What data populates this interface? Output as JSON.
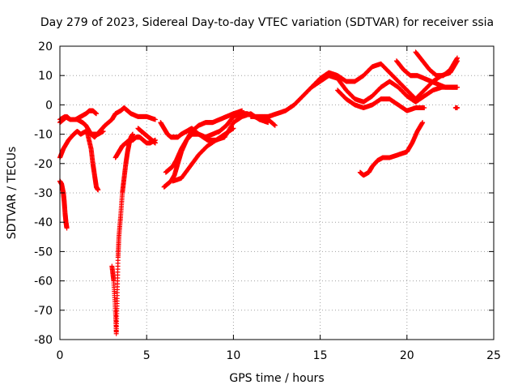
{
  "chart_data": {
    "type": "scatter",
    "title": "Day 279 of 2023, Sidereal Day-to-day VTEC variation (SDTVAR) for receiver ssia",
    "xlabel": "GPS time / hours",
    "ylabel": "SDTVAR / TECUs",
    "xlim": [
      0,
      25
    ],
    "ylim": [
      -80,
      20
    ],
    "xticks": [
      0,
      5,
      10,
      15,
      20,
      25
    ],
    "yticks": [
      -80,
      -70,
      -60,
      -50,
      -40,
      -30,
      -20,
      -10,
      0,
      10,
      20
    ],
    "xtick_labels": [
      "0",
      "5",
      "10",
      "15",
      "20",
      "25"
    ],
    "ytick_labels": [
      "-80",
      "-70",
      "-60",
      "-50",
      "-40",
      "-30",
      "-20",
      "-10",
      "0",
      "10",
      "20"
    ],
    "grid": true,
    "marker": "+",
    "color": "#ff0000",
    "series": [
      {
        "name": "s1",
        "x": [
          0.0,
          0.3,
          0.6,
          1.0,
          1.3,
          1.5,
          1.8,
          2.0,
          2.3,
          2.6,
          3.0,
          3.2,
          3.5,
          3.7,
          3.9,
          4.1,
          4.5,
          5.0,
          5.5
        ],
        "y": [
          -5,
          -4,
          -5,
          -5,
          -6,
          -7,
          -10,
          -11,
          -9,
          -7,
          -5,
          -3,
          -2,
          -1,
          -2,
          -3,
          -4,
          -4,
          -5
        ]
      },
      {
        "name": "s2",
        "x": [
          0.0,
          0.2,
          0.5,
          0.8,
          1.0,
          1.2,
          1.5,
          1.8,
          2.0,
          2.2,
          2.5
        ],
        "y": [
          -18,
          -15,
          -12,
          -10,
          -9,
          -10,
          -9,
          -10,
          -10,
          -10,
          -9
        ]
      },
      {
        "name": "s3",
        "x": [
          1.6,
          1.8,
          1.9,
          2.0,
          2.1,
          2.2
        ],
        "y": [
          -10,
          -15,
          -20,
          -24,
          -28,
          -29
        ]
      },
      {
        "name": "s4",
        "x": [
          0.0,
          0.2,
          0.4,
          0.6,
          0.9,
          1.2,
          1.5,
          1.7,
          1.9,
          2.1
        ],
        "y": [
          -6,
          -5,
          -4,
          -5,
          -5,
          -4,
          -3,
          -2,
          -2,
          -3
        ]
      },
      {
        "name": "s5",
        "x": [
          0.0,
          0.1,
          0.2,
          0.25,
          0.3,
          0.35,
          0.4
        ],
        "y": [
          -26,
          -27,
          -30,
          -33,
          -37,
          -40,
          -42
        ]
      },
      {
        "name": "s6",
        "x": [
          3.0,
          3.1,
          3.2,
          3.25,
          3.3,
          3.35,
          3.4,
          3.5,
          3.6,
          3.7,
          3.8,
          3.9,
          4.0,
          4.1,
          4.2
        ],
        "y": [
          -55,
          -60,
          -70,
          -78,
          -66,
          -52,
          -45,
          -38,
          -30,
          -25,
          -20,
          -16,
          -13,
          -11,
          -10
        ]
      },
      {
        "name": "s7",
        "x": [
          3.2,
          3.4,
          3.6,
          3.8,
          4.0,
          4.2,
          4.4,
          4.6,
          4.8,
          5.0,
          5.2,
          5.5
        ],
        "y": [
          -18,
          -16,
          -14,
          -13,
          -12,
          -12,
          -11,
          -11,
          -12,
          -13,
          -13,
          -12
        ]
      },
      {
        "name": "s8",
        "x": [
          4.5,
          4.7,
          4.9,
          5.1,
          5.3,
          5.5
        ],
        "y": [
          -8,
          -9,
          -10,
          -11,
          -12,
          -13
        ]
      },
      {
        "name": "s9",
        "x": [
          5.8,
          6.0,
          6.2,
          6.4,
          6.6,
          6.8,
          7.0,
          7.3,
          7.6,
          8.0,
          8.5,
          9.0,
          9.5,
          10.0,
          10.5,
          11.0,
          11.5,
          12.0
        ],
        "y": [
          -6,
          -8,
          -10,
          -11,
          -11,
          -11,
          -10,
          -9,
          -8,
          -10,
          -12,
          -12,
          -11,
          -6,
          -4,
          -3,
          -5,
          -6
        ]
      },
      {
        "name": "s10",
        "x": [
          6.0,
          6.2,
          6.4,
          6.6,
          6.8,
          7.0,
          7.3,
          7.6,
          8.0,
          8.4,
          8.8,
          9.2,
          9.6,
          10.0,
          10.4,
          10.8,
          11.2,
          11.6,
          12.0,
          12.4
        ],
        "y": [
          -28,
          -27,
          -26,
          -24,
          -20,
          -16,
          -12,
          -10,
          -10,
          -11,
          -10,
          -9,
          -7,
          -4,
          -3,
          -3,
          -4,
          -5,
          -5,
          -7
        ]
      },
      {
        "name": "s11",
        "x": [
          6.1,
          6.3,
          6.5,
          6.7,
          7.0,
          7.3,
          7.6,
          8.0,
          8.4,
          8.8,
          9.2,
          9.6,
          10.0,
          10.5
        ],
        "y": [
          -23,
          -22,
          -21,
          -19,
          -15,
          -12,
          -9,
          -7,
          -6,
          -6,
          -5,
          -4,
          -3,
          -2
        ]
      },
      {
        "name": "s12",
        "x": [
          6.5,
          7.0,
          7.5,
          8.0,
          8.5,
          9.0,
          9.5,
          10.0
        ],
        "y": [
          -26,
          -25,
          -21,
          -17,
          -14,
          -12,
          -10,
          -8
        ]
      },
      {
        "name": "s13",
        "x": [
          11.0,
          11.5,
          12.0,
          12.5,
          13.0,
          13.5,
          14.0,
          14.5,
          15.0,
          15.5,
          16.0,
          16.5,
          17.0,
          17.5,
          18.0,
          18.5,
          19.0,
          19.5,
          20.0,
          20.5,
          21.0,
          21.5,
          22.0,
          22.5,
          22.9
        ],
        "y": [
          -4,
          -4,
          -4,
          -3,
          -2,
          0,
          3,
          6,
          9,
          11,
          10,
          8,
          8,
          10,
          13,
          14,
          11,
          8,
          5,
          2,
          5,
          8,
          10,
          11,
          15
        ]
      },
      {
        "name": "s14",
        "x": [
          14.5,
          15.0,
          15.5,
          16.0,
          16.5,
          17.0,
          17.5,
          18.0,
          18.5,
          19.0,
          19.5,
          20.0,
          20.5,
          21.0,
          21.5,
          22.0,
          22.5,
          22.9
        ],
        "y": [
          6,
          8,
          10,
          9,
          5,
          2,
          1,
          3,
          6,
          8,
          6,
          3,
          1,
          3,
          5,
          6,
          6,
          6
        ]
      },
      {
        "name": "s15",
        "x": [
          16.0,
          16.5,
          17.0,
          17.5,
          18.0,
          18.5,
          19.0,
          19.5,
          20.0,
          20.5,
          21.0
        ],
        "y": [
          5,
          2,
          0,
          -1,
          0,
          2,
          2,
          0,
          -2,
          -1,
          -1
        ]
      },
      {
        "name": "s16",
        "x": [
          17.3,
          17.5,
          17.8,
          18.0,
          18.3,
          18.6,
          19.0,
          19.5,
          20.0,
          20.3,
          20.6,
          20.9
        ],
        "y": [
          -23,
          -24,
          -23,
          -21,
          -19,
          -18,
          -18,
          -17,
          -16,
          -13,
          -9,
          -6
        ]
      },
      {
        "name": "s17",
        "x": [
          19.4,
          19.8,
          20.2,
          20.6,
          21.0,
          21.4,
          21.8,
          22.2,
          22.6,
          22.9
        ],
        "y": [
          15,
          12,
          10,
          10,
          9,
          8,
          7,
          6,
          6,
          6
        ]
      },
      {
        "name": "s18",
        "x": [
          20.5,
          20.9,
          21.3,
          21.7,
          22.1,
          22.5,
          22.9
        ],
        "y": [
          18,
          15,
          12,
          10,
          10,
          12,
          16
        ]
      },
      {
        "name": "s19",
        "x": [
          22.8,
          22.9
        ],
        "y": [
          -1,
          -1
        ]
      }
    ]
  }
}
